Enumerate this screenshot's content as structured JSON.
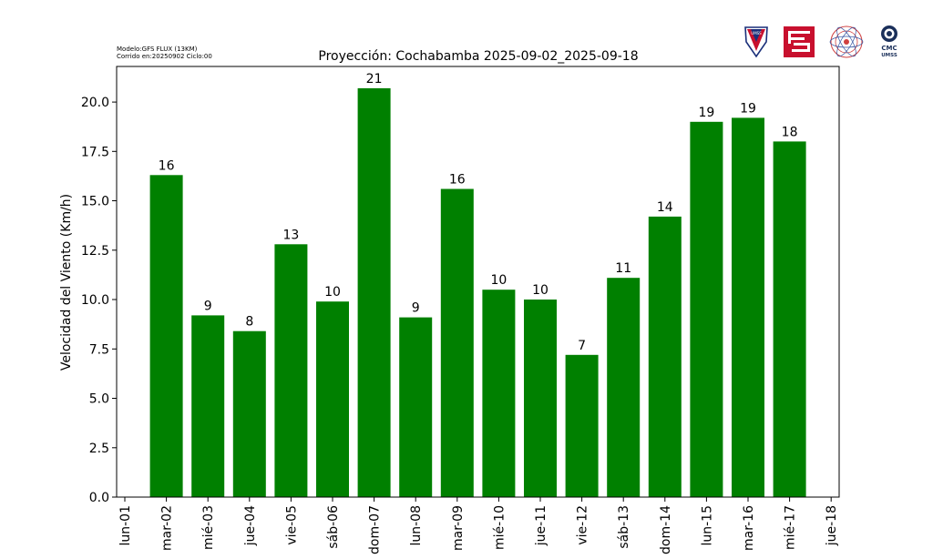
{
  "header": {
    "model_line": "Modelo:GFS FLUX (13KM)",
    "run_line": "Corrido en:20250902 Ciclo:00"
  },
  "logos": {
    "logo1_text": "UMSS",
    "logo4_line1": "CMC",
    "logo4_line2": "UMSS"
  },
  "chart_data": {
    "type": "bar",
    "title": "Proyección: Cochabamba  2025-09-02_2025-09-18",
    "ylabel": "Velocidad del Viento (Km/h)",
    "xlabel": "",
    "x_ticks": [
      "lun-01",
      "mar-02",
      "mié-03",
      "jue-04",
      "vie-05",
      "sáb-06",
      "dom-07",
      "lun-08",
      "mar-09",
      "mié-10",
      "jue-11",
      "vie-12",
      "sáb-13",
      "dom-14",
      "lun-15",
      "mar-16",
      "mié-17",
      "jue-18"
    ],
    "categories": [
      "mar-02",
      "mié-03",
      "jue-04",
      "vie-05",
      "sáb-06",
      "dom-07",
      "lun-08",
      "mar-09",
      "mié-10",
      "jue-11",
      "vie-12",
      "sáb-13",
      "dom-14",
      "lun-15",
      "mar-16",
      "mié-17"
    ],
    "values": [
      16.3,
      9.2,
      8.4,
      12.8,
      9.9,
      20.7,
      9.1,
      15.6,
      10.5,
      10.0,
      7.2,
      11.1,
      14.2,
      19.0,
      19.2,
      18.0
    ],
    "data_labels": [
      "16",
      "9",
      "8",
      "13",
      "10",
      "21",
      "9",
      "16",
      "10",
      "10",
      "7",
      "11",
      "14",
      "19",
      "19",
      "18"
    ],
    "y_ticks": [
      "0.0",
      "2.5",
      "5.0",
      "7.5",
      "10.0",
      "12.5",
      "15.0",
      "17.5",
      "20.0"
    ],
    "ylim": [
      0,
      21.8
    ],
    "bar_color": "#008000",
    "grid": false,
    "legend": "none"
  }
}
